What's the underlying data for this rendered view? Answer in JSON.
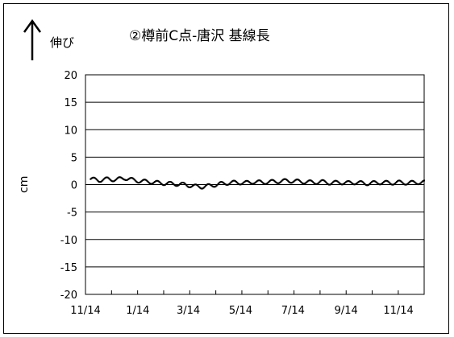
{
  "chart_data": {
    "type": "scatter",
    "title": "②樽前C点-唐沢 基線長",
    "annotation": "伸び",
    "xlabel": "",
    "ylabel": "cm",
    "ylim": [
      -20,
      20
    ],
    "yticks": [
      "20",
      "15",
      "10",
      "5",
      "0",
      "-5",
      "-10",
      "-15",
      "-20"
    ],
    "xticks": [
      "11/14",
      "1/14",
      "3/14",
      "5/14",
      "7/14",
      "9/14",
      "11/14"
    ],
    "grid": "horizontal",
    "series": [
      {
        "color": "#000000",
        "x": [
          "11/20",
          "11/30",
          "12/10",
          "12/20",
          "12/30",
          "1/9",
          "1/19",
          "1/29",
          "2/8",
          "2/18",
          "2/28",
          "3/10",
          "3/20",
          "3/30",
          "4/9",
          "4/19",
          "4/29",
          "5/9",
          "5/19",
          "5/29",
          "6/8",
          "6/18",
          "6/28",
          "7/8",
          "7/18",
          "7/28",
          "8/7",
          "8/17",
          "8/27",
          "9/6",
          "9/16",
          "9/26",
          "10/6",
          "10/16",
          "10/26",
          "11/5",
          "11/15",
          "11/25",
          "12/5"
        ],
        "values": [
          1.0,
          0.8,
          1.0,
          0.9,
          1.2,
          0.8,
          0.6,
          0.5,
          0.3,
          0.2,
          0.1,
          0.0,
          -0.3,
          -0.4,
          -0.2,
          0.1,
          0.3,
          0.4,
          0.3,
          0.5,
          0.4,
          0.5,
          0.6,
          0.7,
          0.6,
          0.5,
          0.4,
          0.5,
          0.3,
          0.4,
          0.3,
          0.4,
          0.2,
          0.3,
          0.4,
          0.3,
          0.4,
          0.3,
          0.4
        ]
      }
    ]
  }
}
